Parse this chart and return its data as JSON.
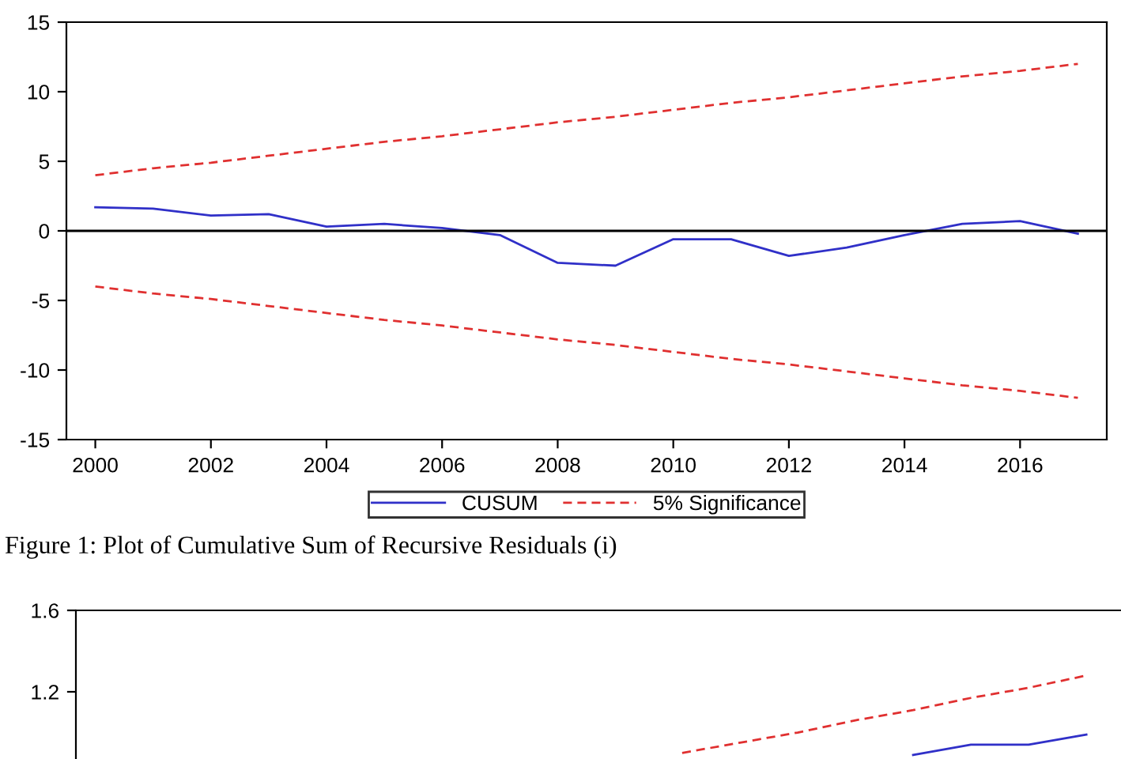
{
  "chart_data": [
    {
      "type": "line",
      "x": [
        2000,
        2001,
        2002,
        2003,
        2004,
        2005,
        2006,
        2007,
        2008,
        2009,
        2010,
        2011,
        2012,
        2013,
        2014,
        2015,
        2016,
        2017
      ],
      "series": [
        {
          "name": "CUSUM",
          "color": "#3030c8",
          "line_style": "solid",
          "values": [
            1.7,
            1.6,
            1.1,
            1.2,
            0.3,
            0.5,
            0.2,
            -0.3,
            -2.3,
            -2.5,
            -0.6,
            -0.6,
            -1.8,
            -1.2,
            -0.3,
            0.5,
            0.7,
            -0.2
          ]
        },
        {
          "name": "5% Significance",
          "color": "#e03030",
          "line_style": "dashed",
          "values": [
            4,
            4.5,
            4.9,
            5.4,
            5.9,
            6.4,
            6.8,
            7.3,
            7.8,
            8.2,
            8.7,
            9.2,
            9.6,
            10.1,
            10.6,
            11.1,
            11.5,
            12
          ]
        },
        {
          "color": "#e03030",
          "line_style": "dashed",
          "values": [
            -4,
            -4.5,
            -4.9,
            -5.4,
            -5.9,
            -6.4,
            -6.8,
            -7.3,
            -7.8,
            -8.2,
            -8.7,
            -9.2,
            -9.6,
            -10.1,
            -10.6,
            -11.1,
            -11.5,
            -12
          ]
        }
      ],
      "xlim": [
        1999.5,
        2017.5
      ],
      "xticks": [
        2000,
        2002,
        2004,
        2006,
        2008,
        2010,
        2012,
        2014,
        2016
      ],
      "ylim": [
        -15,
        15
      ],
      "yticks": [
        -15,
        -10,
        -5,
        0,
        5,
        10,
        15
      ],
      "ref_lines": [
        {
          "axis": "y",
          "value": 0,
          "color": "#000000",
          "line_style": "solid"
        }
      ],
      "grid": false,
      "legend": "bottom",
      "marker": "none",
      "annotations": [
        "Figure 1: Plot of Cumulative Sum of Recursive Residuals (i)"
      ]
    },
    {
      "type": "line",
      "categories": [
        null,
        null,
        null,
        null,
        null,
        null,
        null,
        null,
        null,
        null,
        null,
        null,
        null,
        null,
        null,
        null,
        null,
        null
      ],
      "series": [
        {
          "color": "#3030c8",
          "line_style": "solid",
          "values": [
            null,
            null,
            null,
            null,
            null,
            null,
            null,
            null,
            null,
            null,
            null,
            null,
            null,
            null,
            0.89,
            0.94,
            0.94,
            0.99
          ]
        },
        {
          "color": "#e03030",
          "line_style": "dashed",
          "values": [
            null,
            null,
            null,
            null,
            null,
            null,
            null,
            null,
            null,
            null,
            0.9,
            0.95,
            1.0,
            1.06,
            1.11,
            1.17,
            1.22,
            1.28
          ]
        }
      ],
      "ylim": [
        0.87,
        1.6
      ],
      "yticks": [
        1.2,
        1.6
      ],
      "tick_labels": "y",
      "grid": false,
      "legend": false,
      "marker": "none"
    }
  ]
}
